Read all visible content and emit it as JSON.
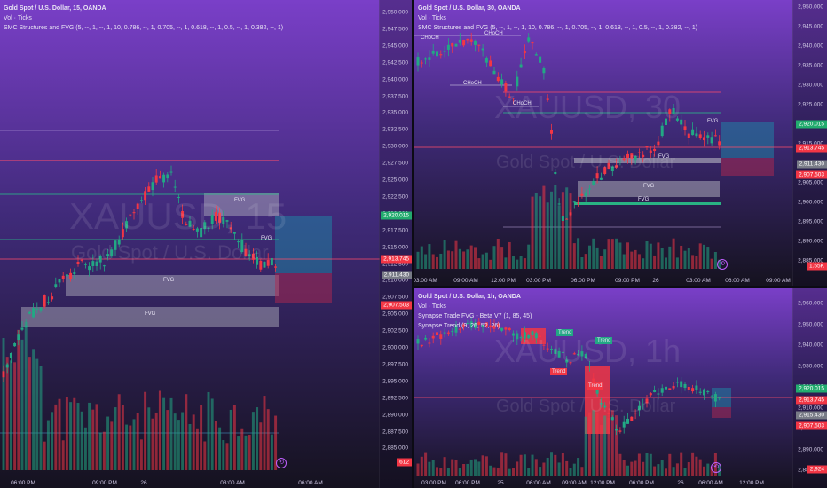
{
  "panes": {
    "left": {
      "title": "Gold Spot / U.S. Dollar, 15, OANDA",
      "indicator1": "Vol · Ticks",
      "indicator2": "SMC Structures and FVG (5, --, 1, --, 1, 10, 0.786, --, 1, 0.705, --, 1, 0.618, --, 1, 0.5, --, 1, 0.382, --, 1)",
      "watermark_sym": "XAUUSD, 15",
      "watermark_name": "Gold Spot / U.S. Dollar",
      "y_ticks": [
        "2,950.000",
        "2,947.500",
        "2,945.000",
        "2,942.500",
        "2,940.000",
        "2,937.500",
        "2,935.000",
        "2,932.500",
        "2,930.000",
        "2,927.500",
        "2,925.000",
        "2,922.500",
        "2,920.000",
        "2,917.500",
        "2,915.000",
        "2,912.500",
        "2,910.000",
        "2,907.500",
        "2,905.000",
        "2,902.500",
        "2,900.000",
        "2,897.500",
        "2,895.000",
        "2,892.500",
        "2,890.000",
        "2,887.500",
        "2,885.000"
      ],
      "x_ticks": [
        "06:00 PM",
        "09:00 PM",
        "26",
        "03:00 AM",
        "06:00 AM"
      ],
      "price_tags": [
        "2,920.015",
        "2,913.745",
        "2,911.430",
        "2,907.503",
        "612"
      ],
      "labels": [
        "FVG",
        "FVG",
        "FVG",
        "FVG"
      ],
      "volume_value": "612"
    },
    "right_top": {
      "title": "Gold Spot / U.S. Dollar, 30, OANDA",
      "indicator1": "Vol · Ticks",
      "indicator2": "SMC Structures and FVG (5, --, 1, --, 1, 10, 0.786, --, 1, 0.705, --, 1, 0.618, --, 1, 0.5, --, 1, 0.382, --, 1)",
      "watermark_sym": "XAUUSD, 30",
      "watermark_name": "Gold Spot / U.S. Dollar",
      "y_ticks": [
        "2,950.000",
        "2,945.000",
        "2,940.000",
        "2,935.000",
        "2,930.000",
        "2,925.000",
        "2,920.000",
        "2,915.000",
        "2,910.000",
        "2,905.000",
        "2,900.000",
        "2,895.000",
        "2,890.000",
        "2,885.000"
      ],
      "x_ticks": [
        "03:00 AM",
        "09:00 AM",
        "12:00 PM",
        "03:00 PM",
        "06:00 PM",
        "09:00 PM",
        "26",
        "03:00 AM",
        "06:00 AM",
        "09:00 AM"
      ],
      "price_tags": [
        "2,920.015",
        "2,913.745",
        "2,911.430",
        "2,907.503",
        "1.55K"
      ],
      "labels": [
        "CHoCH",
        "CHoCH",
        "CHoCH",
        "CHoCH",
        "FVG",
        "FVG",
        "FVG",
        "FVG"
      ]
    },
    "right_bottom": {
      "title": "Gold Spot / U.S. Dollar, 1h, OANDA",
      "indicator1": "Vol · Ticks",
      "indicator2": "Synapse Trade FVG - Beta V7 (1, 85, 45)",
      "indicator3": "Synapse Trend (9, 26, 52, 26)",
      "watermark_sym": "XAUUSD, 1h",
      "watermark_name": "Gold Spot / U.S. Dollar",
      "y_ticks": [
        "2,960.000",
        "2,950.000",
        "2,940.000",
        "2,930.000",
        "2,920.000",
        "2,910.000",
        "2,900.000",
        "2,890.000",
        "2,880.000"
      ],
      "x_ticks": [
        "03:00 PM",
        "06:00 PM",
        "25",
        "06:00 AM",
        "09:00 AM",
        "12:00 PM",
        "06:00 PM",
        "26",
        "06:00 AM",
        "12:00 PM"
      ],
      "price_tags": [
        "2,920.015",
        "2,913.745",
        "2,915.430",
        "2,907.503",
        "2,924"
      ],
      "trend_labels": [
        "Trend",
        "Trend",
        "Trend",
        "Trend"
      ]
    }
  },
  "colors": {
    "bull": "#22a884",
    "bear": "#f23645",
    "fvg": "#b7b7c3",
    "level": "#ff4d6a",
    "green_level": "#29c389",
    "tag_green": "#22ab6e",
    "tag_red": "#f23645",
    "tag_gray": "#787b86"
  },
  "icons": [
    "replay-icon"
  ]
}
